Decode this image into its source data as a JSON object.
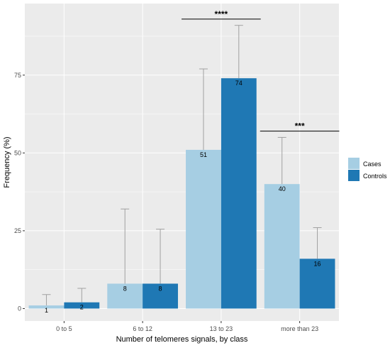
{
  "chart_data": {
    "type": "bar",
    "categories": [
      "0 to 5",
      "6 to 12",
      "13 to 23",
      "more than 23"
    ],
    "series": [
      {
        "name": "Cases",
        "values": [
          1,
          8,
          51,
          40
        ],
        "error_upper": [
          4.5,
          32,
          77,
          55
        ],
        "color": "#a6cee3"
      },
      {
        "name": "Controls",
        "values": [
          2,
          8,
          74,
          16
        ],
        "error_upper": [
          6.5,
          25.5,
          91,
          26
        ],
        "color": "#1f78b4"
      }
    ],
    "data_labels": [
      [
        "1",
        "8",
        "51",
        "40"
      ],
      [
        "2",
        "8",
        "74",
        "16"
      ]
    ],
    "xlabel": "Number of telomeres signals, by class",
    "ylabel": "Frequency (%)",
    "y_ticks": [
      0,
      25,
      50,
      75
    ],
    "y_tick_labels": [
      "0",
      "25",
      "50",
      "75"
    ],
    "ylim": [
      -4,
      98
    ],
    "grid": true,
    "legend_position": "right",
    "significance": [
      {
        "category": "13 to 23",
        "label": "****",
        "y": 93
      },
      {
        "category": "more than 23",
        "label": "***",
        "y": 57
      }
    ],
    "panel_color": "#ebebeb",
    "grid_color": "#ffffff",
    "errorbar_color": "#a0a0a0"
  }
}
